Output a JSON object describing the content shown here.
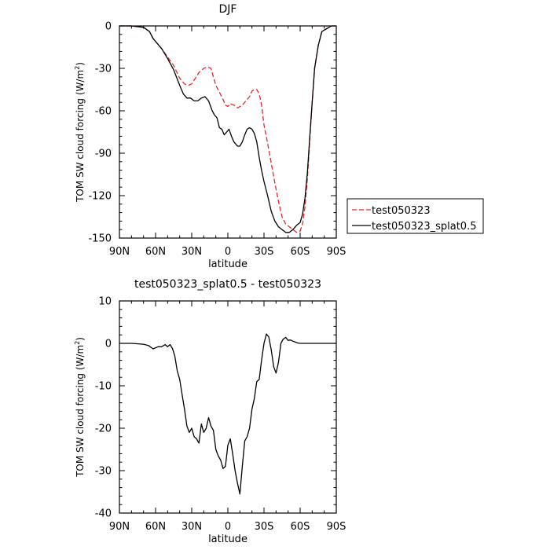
{
  "chart_data": [
    {
      "type": "line",
      "title": "DJF",
      "xlabel": "latitude",
      "ylabel": "TOM SW cloud forcing (W/m",
      "ylabel_sup": "2",
      "ylabel_end": ")",
      "xlim": [
        90,
        -90
      ],
      "ylim": [
        -150,
        0
      ],
      "x_ticks": [
        90,
        60,
        30,
        0,
        -30,
        -60,
        -90
      ],
      "x_tick_labels": [
        "90N",
        "60N",
        "30N",
        "0",
        "30S",
        "60S",
        "90S"
      ],
      "y_ticks": [
        0,
        -30,
        -60,
        -90,
        -120,
        -150
      ],
      "y_tick_labels": [
        "0",
        "-30",
        "-60",
        "-90",
        "-120",
        "-150"
      ],
      "legend_position": "right",
      "series": [
        {
          "name": "test050323",
          "color": "#e8262b",
          "dash": "dashed",
          "x": [
            90,
            80,
            70,
            65,
            62,
            58,
            55,
            50,
            45,
            40,
            36,
            33,
            30,
            27,
            24,
            20,
            17,
            14,
            12,
            10,
            7,
            4,
            2,
            0,
            -2,
            -5,
            -8,
            -12,
            -15,
            -18,
            -20,
            -22,
            -24,
            -26,
            -28,
            -30,
            -33,
            -36,
            -39,
            -42,
            -45,
            -48,
            -51,
            -54,
            -57,
            -60,
            -62,
            -64,
            -66,
            -68,
            -70,
            -72,
            -75,
            -78,
            -82,
            -86,
            -90
          ],
          "y": [
            0,
            0,
            -1,
            -4,
            -9,
            -13,
            -16,
            -22,
            -28,
            -37,
            -41,
            -42,
            -41,
            -37,
            -33,
            -30,
            -29,
            -30,
            -36,
            -42,
            -47,
            -52,
            -56,
            -57,
            -55,
            -56,
            -58,
            -56,
            -53,
            -50,
            -46,
            -45,
            -45,
            -48,
            -56,
            -70,
            -83,
            -97,
            -111,
            -124,
            -135,
            -140,
            -142,
            -144,
            -146,
            -145,
            -140,
            -128,
            -108,
            -80,
            -55,
            -30,
            -14,
            -4,
            -2,
            0,
            0
          ]
        },
        {
          "name": "test050323_splat0.5",
          "color": "#000000",
          "dash": "solid",
          "x": [
            90,
            80,
            70,
            65,
            62,
            58,
            55,
            50,
            45,
            40,
            37,
            34,
            31,
            28,
            25,
            22,
            19,
            16,
            13,
            11,
            9,
            7,
            5,
            3,
            1,
            -1,
            -3,
            -5,
            -8,
            -10,
            -12,
            -14,
            -16,
            -18,
            -20,
            -22,
            -24,
            -26,
            -28,
            -30,
            -33,
            -36,
            -39,
            -42,
            -45,
            -48,
            -51,
            -54,
            -57,
            -60,
            -62,
            -64,
            -66,
            -68,
            -70,
            -72,
            -75,
            -78,
            -82,
            -86,
            -90
          ],
          "y": [
            0,
            0,
            -1,
            -4,
            -9,
            -13,
            -16,
            -23,
            -31,
            -42,
            -48,
            -51,
            -51,
            -53,
            -53,
            -51,
            -50,
            -53,
            -60,
            -63,
            -65,
            -72,
            -73,
            -77,
            -75,
            -73,
            -78,
            -82,
            -85,
            -85,
            -82,
            -77,
            -73,
            -72,
            -73,
            -76,
            -82,
            -93,
            -102,
            -110,
            -120,
            -131,
            -138,
            -142,
            -144,
            -146,
            -146,
            -144,
            -141,
            -139,
            -133,
            -122,
            -104,
            -78,
            -54,
            -30,
            -14,
            -4,
            -2,
            0,
            0
          ]
        }
      ]
    },
    {
      "type": "line",
      "title": "test050323_splat0.5 - test050323",
      "xlabel": "latitude",
      "ylabel": "TOM SW cloud forcing (W/m",
      "ylabel_sup": "2",
      "ylabel_end": ")",
      "xlim": [
        90,
        -90
      ],
      "ylim": [
        -40,
        10
      ],
      "x_ticks": [
        90,
        60,
        30,
        0,
        -30,
        -60,
        -90
      ],
      "x_tick_labels": [
        "90N",
        "60N",
        "30N",
        "0",
        "30S",
        "60S",
        "90S"
      ],
      "y_ticks": [
        10,
        0,
        -10,
        -20,
        -30,
        -40
      ],
      "y_tick_labels": [
        "10",
        "0",
        "-10",
        "-20",
        "-30",
        "-40"
      ],
      "series": [
        {
          "name": "",
          "color": "#000000",
          "dash": "solid",
          "x": [
            90,
            80,
            70,
            66,
            62,
            58,
            55,
            52,
            50,
            48,
            46,
            44,
            42,
            40,
            38,
            36,
            34,
            32,
            30,
            28,
            26,
            24,
            22,
            20,
            18,
            16,
            14,
            12,
            10,
            8,
            6,
            4,
            2,
            0,
            -2,
            -4,
            -6,
            -8,
            -10,
            -12,
            -14,
            -16,
            -18,
            -20,
            -22,
            -24,
            -26,
            -28,
            -30,
            -32,
            -34,
            -36,
            -38,
            -40,
            -42,
            -44,
            -46,
            -48,
            -50,
            -52,
            -54,
            -56,
            -58,
            -60,
            -62,
            -64,
            -66,
            -68,
            -70,
            -72,
            -74,
            -76,
            -78,
            -80,
            -82,
            -84,
            -86,
            -88,
            -90
          ],
          "y": [
            0,
            0,
            -0.2,
            -0.5,
            -1.3,
            -0.8,
            -0.8,
            -0.3,
            -0.8,
            -0.3,
            -1.2,
            -3,
            -6.5,
            -8.5,
            -12,
            -15.5,
            -19.5,
            -21,
            -20,
            -22,
            -22.5,
            -23.5,
            -19,
            -21,
            -20,
            -17.5,
            -19.5,
            -20.5,
            -25,
            -26.5,
            -27.5,
            -29.5,
            -29,
            -24,
            -22.5,
            -26,
            -30,
            -33,
            -35.5,
            -29,
            -23,
            -22,
            -20,
            -15.5,
            -13,
            -9,
            -8.5,
            -4,
            0,
            2.2,
            1.5,
            -1.5,
            -5.5,
            -7,
            -4.5,
            0,
            1,
            1.4,
            0.7,
            0.8,
            0.5,
            0.3,
            0.1,
            0,
            0,
            0,
            0,
            0,
            0,
            0,
            0,
            0,
            0,
            0,
            0,
            0,
            0,
            0,
            0
          ]
        }
      ]
    }
  ]
}
